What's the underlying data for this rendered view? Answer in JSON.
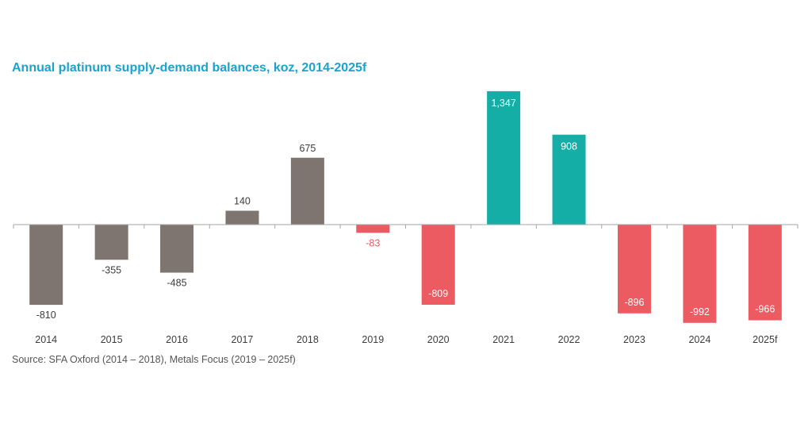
{
  "chart_data": {
    "type": "bar",
    "title": "Annual platinum supply-demand balances, koz, 2014-2025f",
    "categories": [
      "2014",
      "2015",
      "2016",
      "2017",
      "2018",
      "2019",
      "2020",
      "2021",
      "2022",
      "2023",
      "2024",
      "2025f"
    ],
    "values": [
      -810,
      -355,
      -485,
      140,
      675,
      -83,
      -809,
      1347,
      908,
      -896,
      -992,
      -966
    ],
    "value_labels": [
      "-810",
      "-355",
      "-485",
      "140",
      "675",
      "-83",
      "-809",
      "1,347",
      "908",
      "-896",
      "-992",
      "-966"
    ],
    "source_groups": [
      "SFA Oxford",
      "SFA Oxford",
      "SFA Oxford",
      "SFA Oxford",
      "SFA Oxford",
      "Metals Focus",
      "Metals Focus",
      "Metals Focus",
      "Metals Focus",
      "Metals Focus",
      "Metals Focus",
      "Metals Focus"
    ],
    "xlabel": "",
    "ylabel": "koz",
    "ylim": [
      -1000,
      1400
    ],
    "grid": false,
    "colors": {
      "historical": "#7f7570",
      "deficit": "#ec5b61",
      "surplus": "#14aea7",
      "historical_label": "#3c3c3c",
      "deficit_label": "#ec5b61",
      "axis": "#a6a6a6"
    }
  },
  "source": "Source: SFA Oxford (2014 – 2018), Metals Focus (2019 – 2025f)"
}
